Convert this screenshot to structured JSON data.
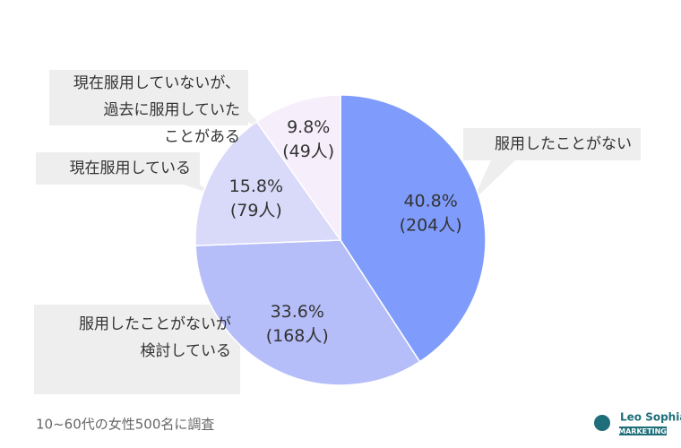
{
  "chart_data": {
    "type": "pie",
    "categories": [
      "服用したことがない",
      "現在服用していないが、\n過去に服用していた\nことがある",
      "現在服用している",
      "服用したことがないが\n検討している"
    ],
    "values": [
      40.8,
      33.6,
      15.8,
      9.8
    ],
    "value_labels": [
      "40.8%",
      "33.6%",
      "15.8%",
      "9.8%"
    ],
    "count_labels": [
      "(204人)",
      "(168人)",
      "(79人)",
      "(49人)"
    ],
    "colors": [
      "#7f9cfc",
      "#b6befa",
      "#d9d9f9",
      "#f6effb"
    ],
    "note": "10~60代の女性500名に調査"
  },
  "logo": {
    "name": "Leo Sophia",
    "tagline": "MARKETING"
  }
}
